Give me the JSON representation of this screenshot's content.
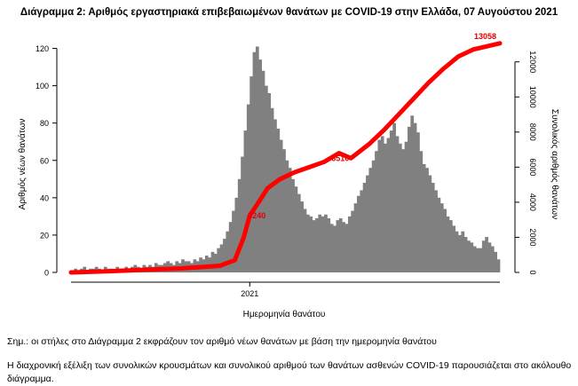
{
  "chart_data": {
    "type": "bar",
    "title": "Διάγραμμα 2: Αριθμός εργαστηριακά επιβεβαιωμένων θανάτων με COVID-19 στην Ελλάδα, 07 Αυγούστου 2021",
    "xlabel": "Ημερομηνία θανάτου",
    "ylabel": "Αριθμός νέων θανάτων",
    "y2label": "Συνολικός αριθμός θανάτων",
    "x_tick_labels": [
      "2021"
    ],
    "ylim": [
      0,
      125
    ],
    "y_ticks": [
      0,
      20,
      40,
      60,
      80,
      100,
      120
    ],
    "y2lim": [
      0,
      13300
    ],
    "y2_ticks": [
      0,
      2000,
      4000,
      6000,
      8000,
      10000,
      12000
    ],
    "grid": false,
    "series": [
      {
        "kind": "bar",
        "color": "#808080",
        "values": [
          1,
          2,
          1,
          2,
          3,
          1,
          2,
          2,
          3,
          2,
          1,
          3,
          2,
          2,
          1,
          3,
          2,
          2,
          3,
          2,
          3,
          4,
          3,
          2,
          4,
          3,
          4,
          3,
          5,
          4,
          4,
          5,
          6,
          5,
          4,
          6,
          5,
          7,
          6,
          6,
          5,
          7,
          6,
          8,
          7,
          9,
          8,
          11,
          10,
          13,
          15,
          18,
          22,
          27,
          33,
          40,
          50,
          62,
          76,
          90,
          105,
          118,
          121,
          114,
          108,
          100,
          96,
          88,
          82,
          77,
          71,
          66,
          60,
          56,
          50,
          46,
          42,
          38,
          34,
          31,
          30,
          28,
          29,
          31,
          30,
          31,
          29,
          26,
          25,
          28,
          29,
          27,
          26,
          30,
          33,
          37,
          41,
          44,
          48,
          52,
          56,
          60,
          65,
          71,
          73,
          69,
          72,
          76,
          80,
          73,
          69,
          66,
          70,
          78,
          84,
          80,
          75,
          65,
          58,
          56,
          52,
          48,
          44,
          40,
          37,
          34,
          30,
          28,
          25,
          22,
          20,
          22,
          19,
          17,
          16,
          14,
          13,
          13,
          17,
          19,
          16,
          14,
          11,
          7
        ]
      },
      {
        "kind": "line",
        "axis": "right",
        "color": "#ff0000",
        "points": [
          [
            0,
            0
          ],
          [
            12,
            60
          ],
          [
            25,
            150
          ],
          [
            37,
            230
          ],
          [
            50,
            380
          ],
          [
            55,
            700
          ],
          [
            58,
            2000
          ],
          [
            60,
            3240
          ],
          [
            63,
            4000
          ],
          [
            66,
            4800
          ],
          [
            70,
            5300
          ],
          [
            75,
            5700
          ],
          [
            80,
            6000
          ],
          [
            85,
            6300
          ],
          [
            90,
            6800
          ],
          [
            94,
            6510
          ],
          [
            100,
            7300
          ],
          [
            105,
            8100
          ],
          [
            110,
            9000
          ],
          [
            115,
            9900
          ],
          [
            120,
            10800
          ],
          [
            125,
            11600
          ],
          [
            130,
            12300
          ],
          [
            135,
            12700
          ],
          [
            140,
            12900
          ],
          [
            144,
            13058
          ]
        ]
      }
    ],
    "annotations": [
      "13058",
      "6510",
      "3240"
    ]
  },
  "note": "Σημ.: οι στήλες στο Διάγραμμα 2 εκφράζουν τον αριθμό νέων θανάτων με βάση την ημερομηνία θανάτου",
  "paragraph": "Η διαχρονική εξέλιξη των συνολικών κρουσμάτων και συνολικού αριθμού των θανάτων ασθενών COVID-19 παρουσιάζεται στο ακόλουθο διάγραμμα."
}
